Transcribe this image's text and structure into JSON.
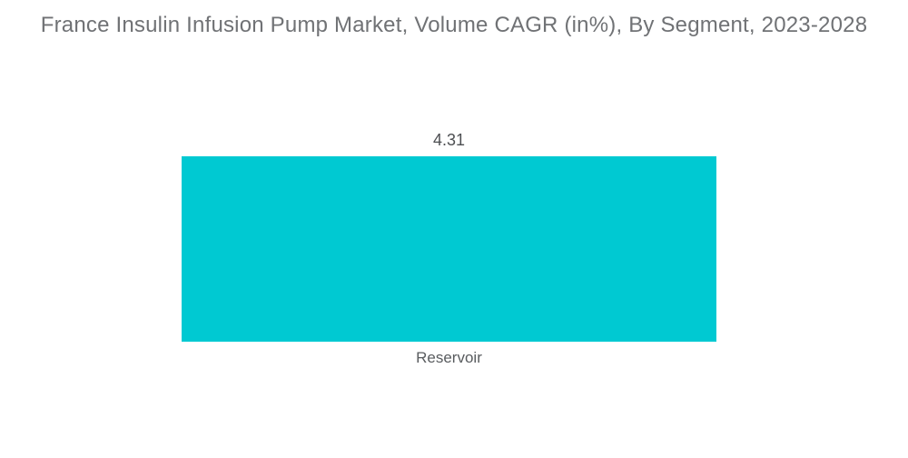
{
  "header": {
    "title": "France Insulin Infusion Pump Market, Volume CAGR (in%), By Segment, 2023-2028"
  },
  "chart_data": {
    "type": "bar",
    "title": "France Insulin Infusion Pump Market, Volume CAGR (in%), By Segment, 2023-2028",
    "categories": [
      "Reservoir"
    ],
    "values": [
      4.31
    ],
    "value_labels": [
      "4.31"
    ],
    "xlabel": "",
    "ylabel": "",
    "ylim": [
      0,
      5
    ],
    "grid": false,
    "legend_position": "none",
    "axes_visible": false,
    "bar_color": "#00c9d2",
    "background_color": "#ffffff",
    "title_color": "#707275",
    "value_label_color": "#4d4f52",
    "category_label_color": "#595c5f"
  }
}
